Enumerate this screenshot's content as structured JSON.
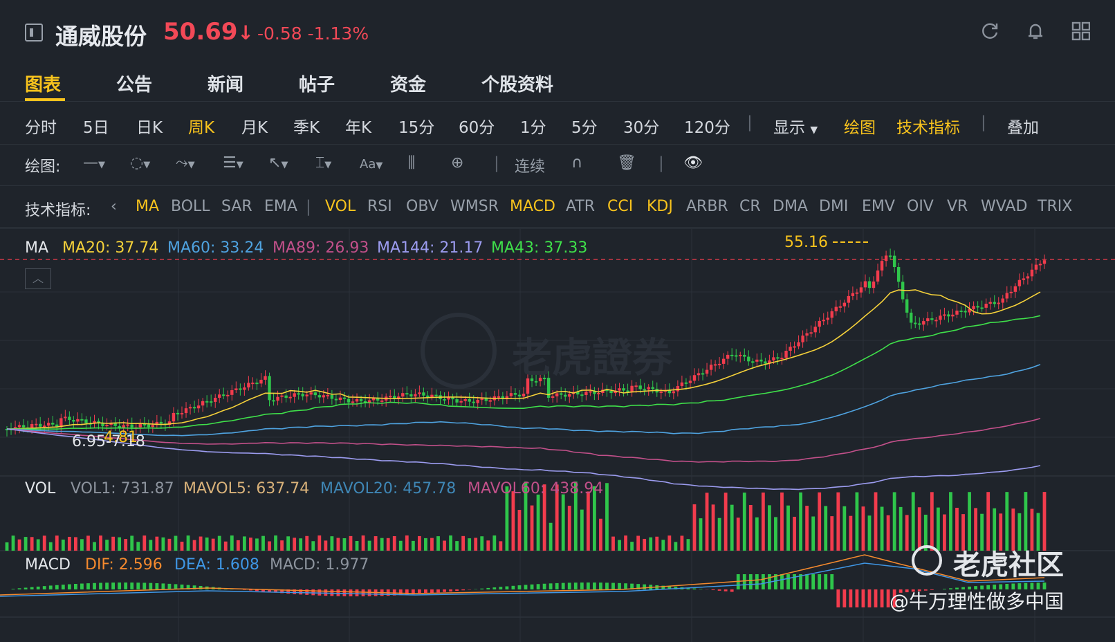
{
  "header": {
    "stock_name": "通威股份",
    "price": "50.69",
    "arrow": "↓",
    "change": "-0.58",
    "change_pct": "-1.13%",
    "icons": [
      "refresh-icon",
      "bell-icon",
      "grid-icon"
    ]
  },
  "tabs": [
    "图表",
    "公告",
    "新闻",
    "帖子",
    "资金",
    "个股资料"
  ],
  "periods": [
    "分时",
    "5日",
    "日K",
    "周K",
    "月K",
    "季K",
    "年K",
    "15分",
    "60分",
    "1分",
    "5分",
    "30分",
    "120分"
  ],
  "period_active": "周K",
  "toolbar_right": {
    "display": "显示",
    "draw": "绘图",
    "indicators": "技术指标",
    "overlay": "叠加"
  },
  "drawbar": {
    "label": "绘图:",
    "continuous": "连续",
    "font": "Aa"
  },
  "indicator_bar": {
    "label": "技术指标:",
    "items": [
      "MA",
      "BOLL",
      "SAR",
      "EMA",
      "VOL",
      "RSI",
      "OBV",
      "WMSR",
      "MACD",
      "ATR",
      "CCI",
      "KDJ",
      "ARBR",
      "CR",
      "DMA",
      "DMI",
      "EMV",
      "OIV",
      "VR",
      "WVAD",
      "TRIX"
    ],
    "highlighted": [
      "MA",
      "VOL",
      "MACD",
      "CCI",
      "KDJ"
    ]
  },
  "ma_legend": {
    "name": "MA",
    "items": [
      {
        "label": "MA20: 37.74",
        "color": "#f5d13a"
      },
      {
        "label": "MA60: 33.24",
        "color": "#4fa3e0"
      },
      {
        "label": "MA89: 26.93",
        "color": "#c2508a"
      },
      {
        "label": "MA144: 21.17",
        "color": "#9c9cf0"
      },
      {
        "label": "MA43: 37.33",
        "color": "#3fe04a"
      }
    ]
  },
  "vol_legend": {
    "name": "VOL",
    "items": [
      {
        "label": "VOL1: 731.87",
        "color": "#8d949e"
      },
      {
        "label": "MAVOL5: 637.74",
        "color": "#d9b27a"
      },
      {
        "label": "MAVOL20: 457.78",
        "color": "#3f87b6"
      },
      {
        "label": "MAVOL60: 438.94",
        "color": "#c2508a"
      }
    ]
  },
  "macd_legend": {
    "name": "MACD",
    "items": [
      {
        "label": "DIF: 2.596",
        "color": "#f58a2e"
      },
      {
        "label": "DEA: 1.608",
        "color": "#3f97e6"
      },
      {
        "label": "MACD: 1.977",
        "color": "#8d949e"
      }
    ]
  },
  "chart_data": {
    "type": "candlestick",
    "high_label": "55.16",
    "low_labels": [
      "4.81",
      "6.95",
      "7.18"
    ],
    "current_price": 50.69,
    "colors": {
      "up": "#f23c4d",
      "down": "#2fc64b"
    }
  },
  "watermark": {
    "text": "老虎證券",
    "corner": "老虎社区",
    "user": "@牛万理性做多中国"
  }
}
